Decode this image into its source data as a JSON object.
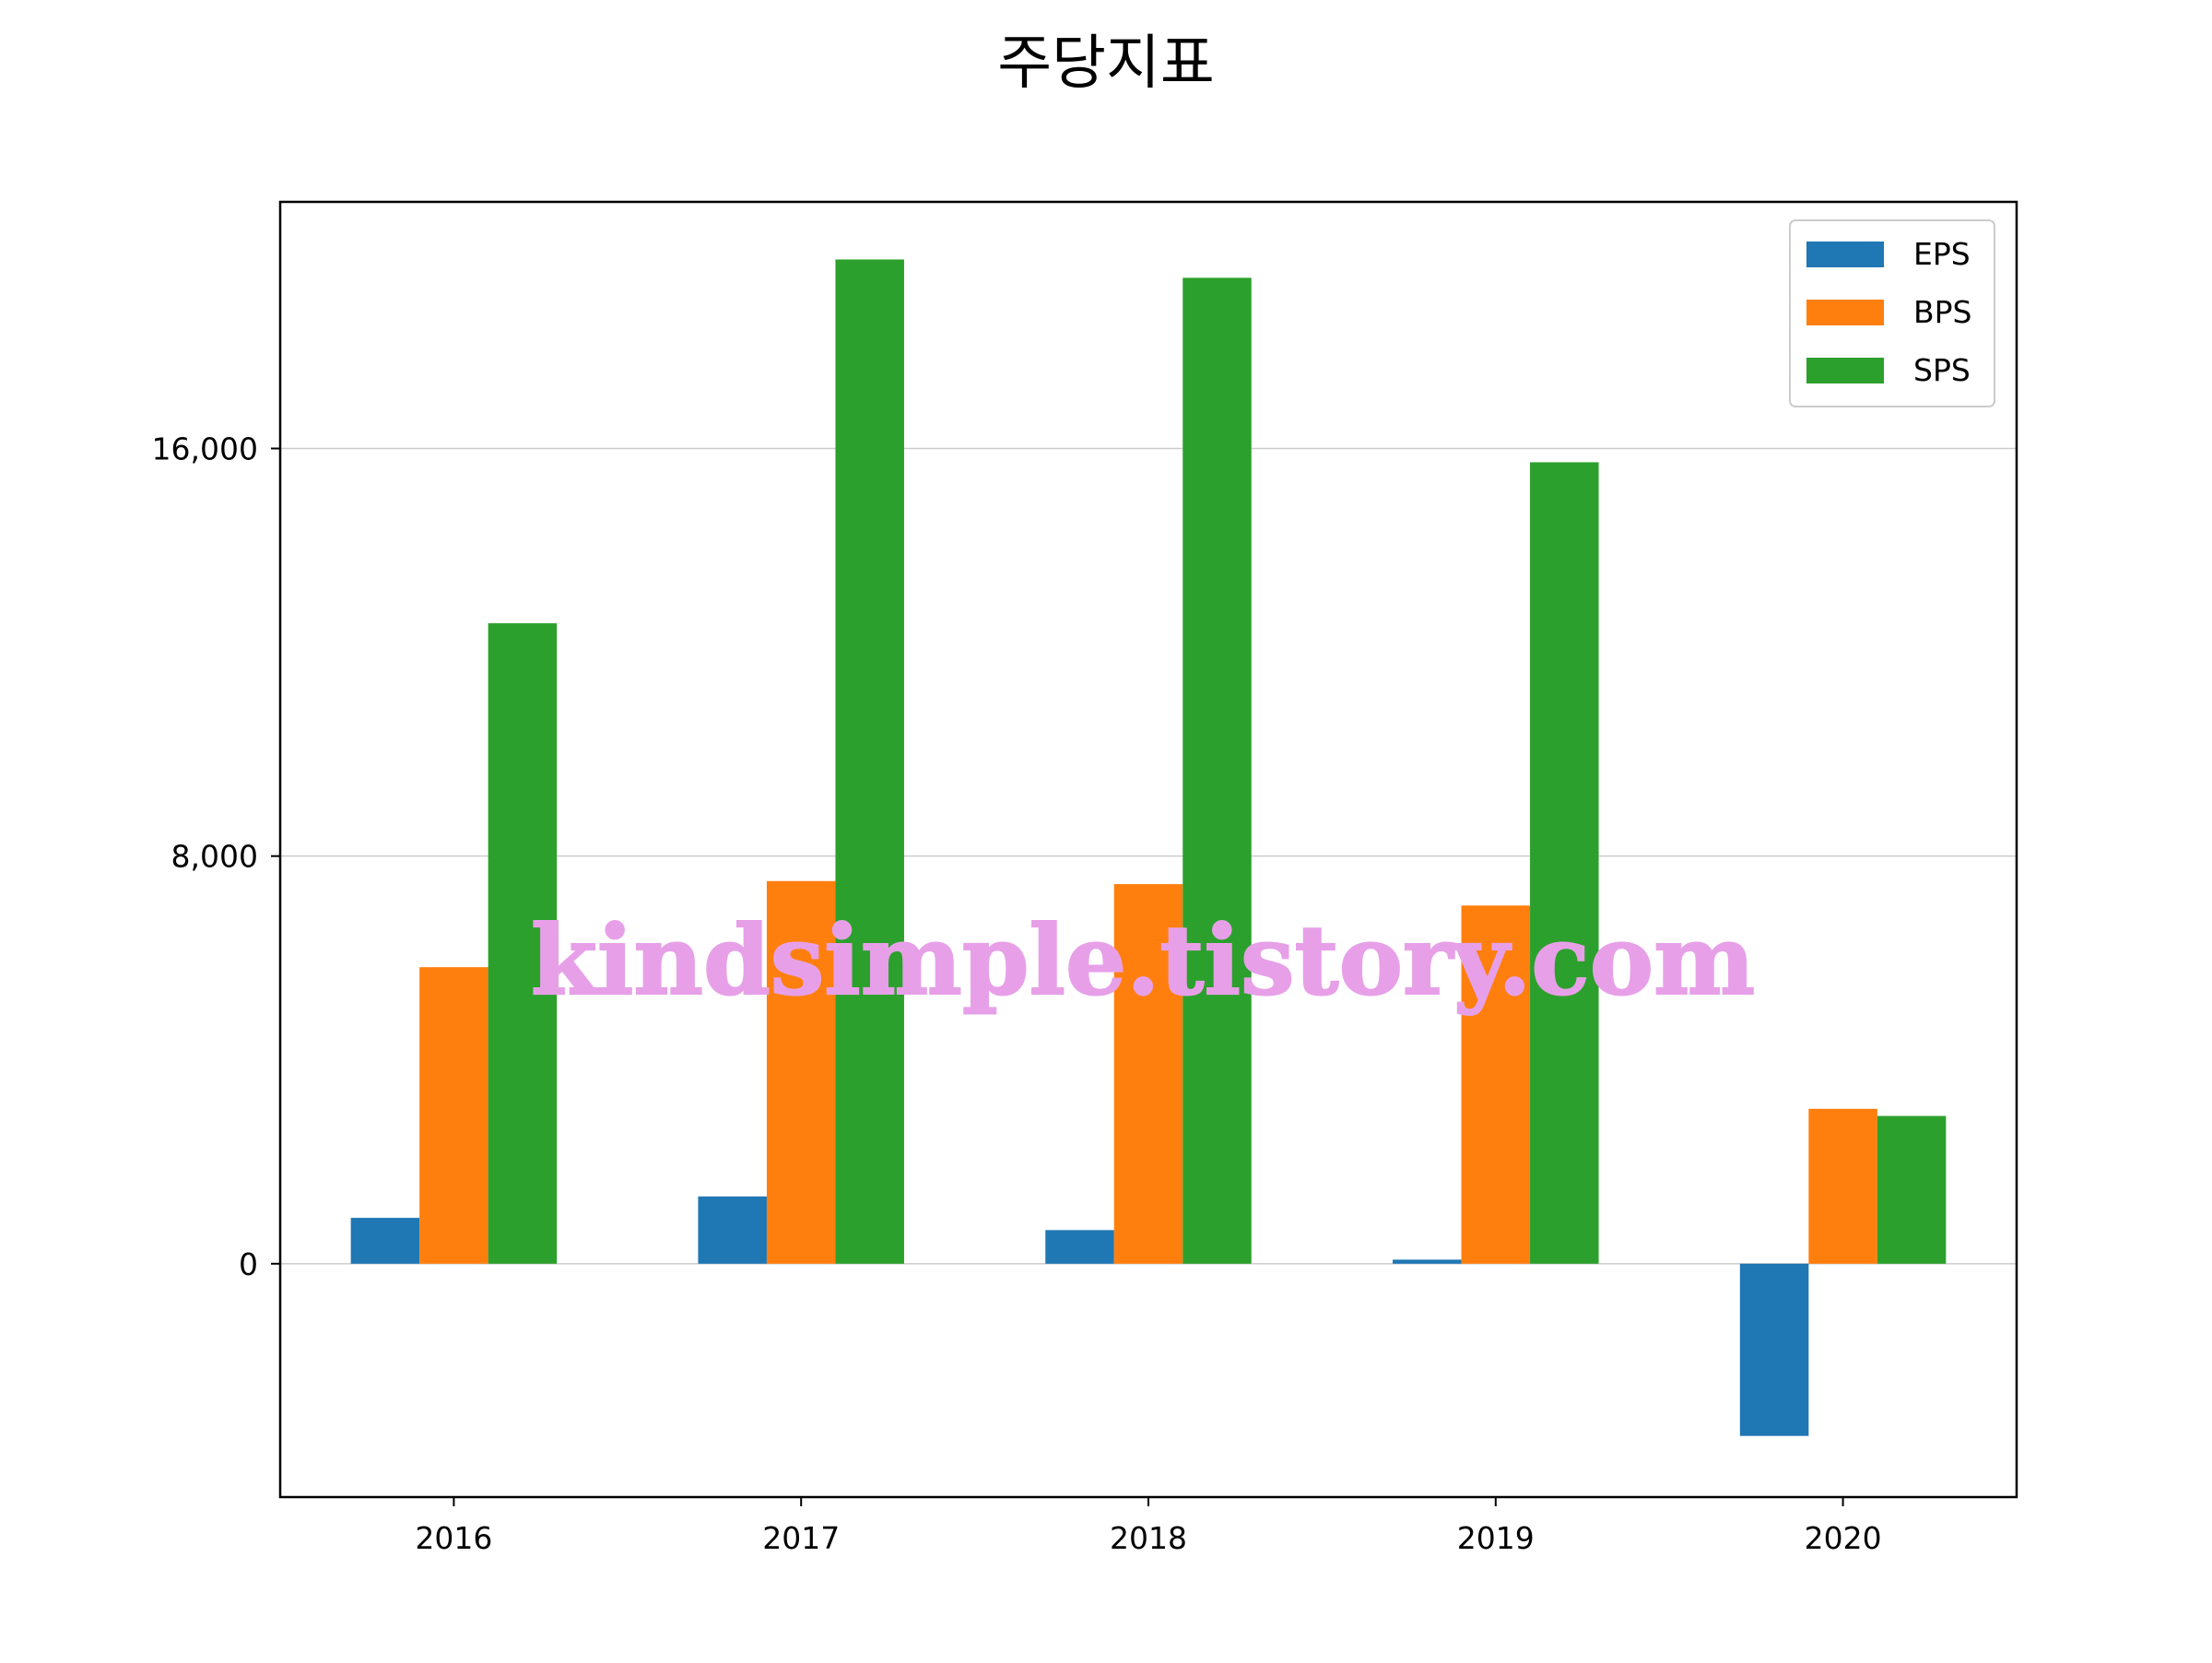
{
  "title": "주당지표",
  "watermark": "kindsimple.tistory.com",
  "chart_data": {
    "type": "bar",
    "title": "주당지표",
    "categories": [
      "2016",
      "2017",
      "2018",
      "2019",
      "2020"
    ],
    "series": [
      {
        "name": "EPS",
        "color": "#1f77b4",
        "values": [
          900,
          1320,
          660,
          80,
          -3380
        ]
      },
      {
        "name": "BPS",
        "color": "#ff7f0e",
        "values": [
          5820,
          7510,
          7450,
          7030,
          3040
        ]
      },
      {
        "name": "SPS",
        "color": "#2ca02c",
        "values": [
          12570,
          19710,
          19350,
          15730,
          2900
        ]
      }
    ],
    "ylim": [
      -4580,
      20840
    ],
    "yticks": [
      0,
      8000,
      16000
    ],
    "ytick_labels": [
      "0",
      "8,000",
      "16,000"
    ],
    "xlabel": "",
    "ylabel": "",
    "grid": "horizontal",
    "legend_position": "upper right"
  }
}
